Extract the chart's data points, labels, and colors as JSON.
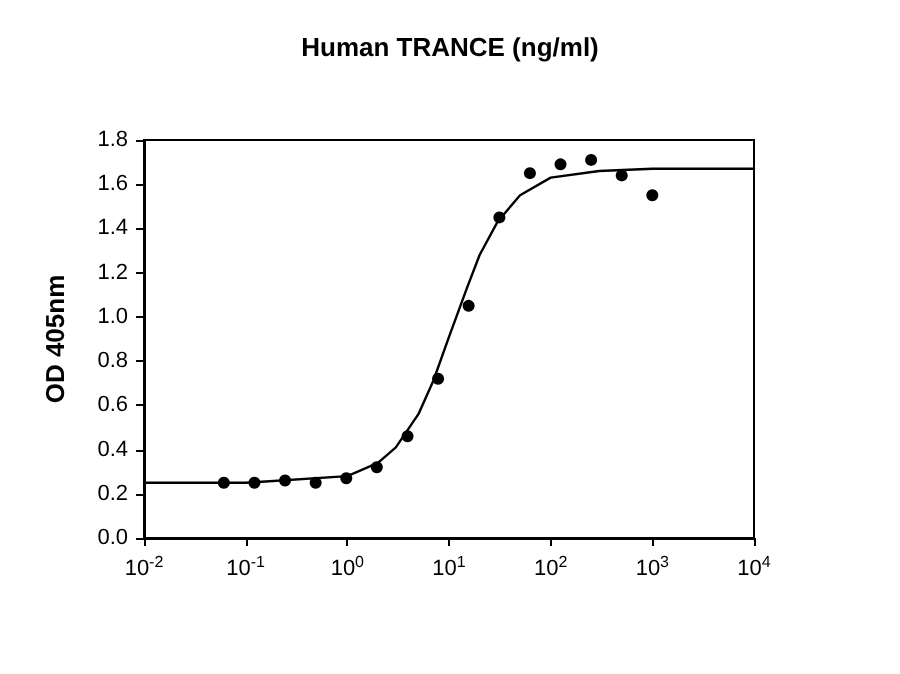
{
  "chart_data": {
    "type": "scatter",
    "title": "Human TRANCE (ng/ml)",
    "ylabel": "OD 405nm",
    "log": "x",
    "grid": false,
    "xlim": [
      0.01,
      10000
    ],
    "ylim": [
      0,
      1.8
    ],
    "xticks": [
      {
        "value": 0.01,
        "label": "10$^{-2}$"
      },
      {
        "value": 0.1,
        "label": "10$^{-1}$"
      },
      {
        "value": 1,
        "label": "10$^{0}$"
      },
      {
        "value": 10,
        "label": "10$^{1}$"
      },
      {
        "value": 100,
        "label": "10$^{2}$"
      },
      {
        "value": 1000,
        "label": "10$^{3}$"
      },
      {
        "value": 10000,
        "label": "10$^{4}$"
      }
    ],
    "yticks": [
      {
        "value": 0,
        "label": "0.0"
      },
      0.2,
      0.4,
      0.6,
      0.8,
      {
        "value": 1,
        "label": "1.0"
      },
      1.2,
      1.4,
      1.6,
      1.8
    ],
    "series": [
      {
        "type": "line",
        "color": "#000000",
        "marker": "none",
        "line_style": "solid",
        "x": [
          0.01,
          0.1,
          1,
          2,
          3,
          5,
          7,
          10,
          15,
          20,
          30,
          50,
          100,
          300,
          1000,
          10000
        ],
        "values": [
          0.25,
          0.25,
          0.28,
          0.34,
          0.41,
          0.56,
          0.71,
          0.91,
          1.13,
          1.28,
          1.43,
          1.55,
          1.63,
          1.66,
          1.67,
          1.67
        ]
      },
      {
        "color": "#000000",
        "marker": "circle",
        "x": [
          0.061,
          0.122,
          0.244,
          0.488,
          0.977,
          1.95,
          3.91,
          7.81,
          15.6,
          31.3,
          62.5,
          125,
          250,
          500,
          1000
        ],
        "values": [
          0.25,
          0.25,
          0.26,
          0.25,
          0.27,
          0.32,
          0.46,
          0.72,
          1.05,
          1.45,
          1.65,
          1.69,
          1.71,
          1.64,
          1.55
        ]
      }
    ]
  }
}
